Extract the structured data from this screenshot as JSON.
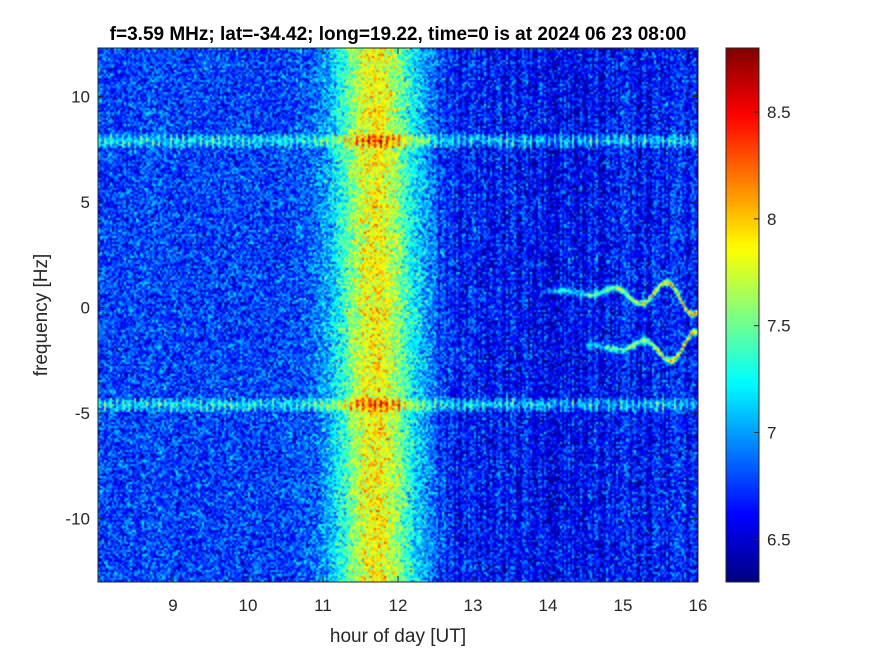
{
  "chart_data": {
    "type": "heatmap",
    "title": "f=3.59 MHz;  lat=-34.42; long=19.22, time=0 is at 2024 06 23 08:00",
    "xlabel": "hour of day [UT]",
    "ylabel": "frequency [Hz]",
    "xlim": [
      8,
      16
    ],
    "ylim": [
      -13,
      12.3
    ],
    "xticks": [
      9,
      10,
      11,
      12,
      13,
      14,
      15,
      16
    ],
    "yticks": [
      -10,
      -5,
      0,
      5,
      10
    ],
    "colorbar": {
      "colormap": "jet",
      "clim": [
        6.3,
        8.8
      ],
      "ticks": [
        6.5,
        7,
        7.5,
        8,
        8.5
      ]
    },
    "features": {
      "background_level": 6.8,
      "broadband_enhancement": {
        "x_range": [
          10.7,
          12.1
        ],
        "peak_x": 11.7,
        "peak_level": 7.9
      },
      "horizontal_lines_y": [
        7.9,
        -4.6
      ],
      "doppler_traces": [
        {
          "x_start": 14,
          "x_end": 16,
          "y_start": 0.8,
          "y_end": 0.5
        },
        {
          "x_start": 14.5,
          "x_end": 16,
          "y_start": -1.8,
          "y_end": -2.0
        }
      ]
    }
  }
}
